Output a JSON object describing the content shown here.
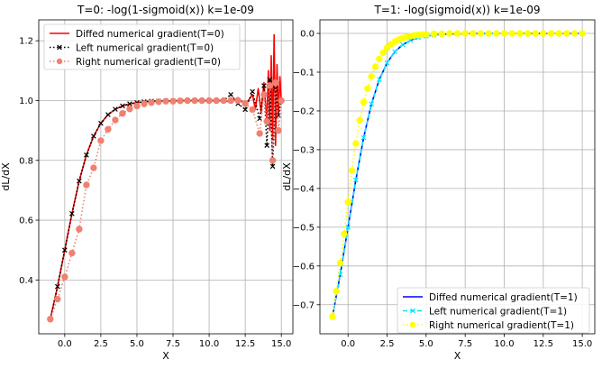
{
  "chart_data": [
    {
      "type": "line",
      "title": "T=0: -log(1-sigmoid(x)) k=1e-09",
      "xlabel": "X",
      "ylabel": "dL/dX",
      "xlim": [
        -1.8,
        15.8
      ],
      "ylim": [
        0.22,
        1.27
      ],
      "xticks": [
        0.0,
        2.5,
        5.0,
        7.5,
        10.0,
        12.5,
        15.0
      ],
      "xtick_labels": [
        "0.0",
        "2.5",
        "5.0",
        "7.5",
        "10.0",
        "12.5",
        "15.0"
      ],
      "yticks": [
        0.4,
        0.6,
        0.8,
        1.0,
        1.2
      ],
      "ytick_labels": [
        "0.4",
        "0.6",
        "0.8",
        "1.0",
        "1.2"
      ],
      "grid": true,
      "legend_position": "top-left",
      "series": [
        {
          "name": "Diffed numerical gradient(T=0)",
          "color": "#ff0000",
          "style": "solid",
          "marker": "none",
          "x": [
            -1.0,
            -0.5,
            0.0,
            0.5,
            1.0,
            1.5,
            2.0,
            2.5,
            3.0,
            3.5,
            4.0,
            4.5,
            5.0,
            5.5,
            6.0,
            6.5,
            7.0,
            7.5,
            8.0,
            8.5,
            9.0,
            9.5,
            10.0,
            10.5,
            11.0,
            11.5,
            12.0,
            12.5,
            13.0,
            13.2,
            13.4,
            13.6,
            13.8,
            14.0,
            14.1,
            14.2,
            14.3,
            14.4,
            14.5,
            14.6,
            14.7,
            14.8,
            14.9,
            15.0
          ],
          "y": [
            0.269,
            0.378,
            0.5,
            0.622,
            0.731,
            0.818,
            0.881,
            0.924,
            0.953,
            0.971,
            0.982,
            0.989,
            0.993,
            0.996,
            0.998,
            0.998,
            0.999,
            0.999,
            1.0,
            1.0,
            1.0,
            1.0,
            1.0,
            1.0,
            1.0,
            0.995,
            1.01,
            0.985,
            1.02,
            0.97,
            1.04,
            0.96,
            1.06,
            0.93,
            1.1,
            0.9,
            1.15,
            0.87,
            1.22,
            0.85,
            1.12,
            0.95,
            1.08,
            1.0
          ]
        },
        {
          "name": "Left numerical gradient(T=0)",
          "color": "#000000",
          "style": "dotted",
          "marker": "x",
          "x": [
            -1.0,
            -0.5,
            0.0,
            0.5,
            1.0,
            1.5,
            2.0,
            2.5,
            3.0,
            3.5,
            4.0,
            4.5,
            5.0,
            5.5,
            6.0,
            6.5,
            7.0,
            7.5,
            8.0,
            8.5,
            9.0,
            9.5,
            10.0,
            10.5,
            11.0,
            11.5,
            12.0,
            12.5,
            13.0,
            13.5,
            13.8,
            14.0,
            14.2,
            14.4,
            14.6,
            14.8,
            15.0
          ],
          "y": [
            0.269,
            0.378,
            0.5,
            0.622,
            0.731,
            0.818,
            0.881,
            0.924,
            0.953,
            0.971,
            0.982,
            0.989,
            0.993,
            0.996,
            0.998,
            0.998,
            0.999,
            0.999,
            1.0,
            1.0,
            1.0,
            1.0,
            1.0,
            1.0,
            1.0,
            1.02,
            0.99,
            0.97,
            1.03,
            0.94,
            1.05,
            0.85,
            1.07,
            0.78,
            1.04,
            0.95,
            1.0
          ]
        },
        {
          "name": "Right numerical gradient(T=0)",
          "color": "#f08070",
          "style": "dotted",
          "marker": "o",
          "x": [
            -1.0,
            -0.5,
            0.0,
            0.5,
            1.0,
            1.5,
            2.0,
            2.5,
            3.0,
            3.5,
            4.0,
            4.5,
            5.0,
            5.5,
            6.0,
            6.5,
            7.0,
            7.5,
            8.0,
            8.5,
            9.0,
            9.5,
            10.0,
            10.5,
            11.0,
            11.5,
            12.0,
            12.5,
            13.0,
            13.5,
            13.8,
            14.0,
            14.2,
            14.4,
            14.6,
            14.8,
            15.0
          ],
          "y": [
            0.269,
            0.336,
            0.41,
            0.49,
            0.57,
            0.718,
            0.775,
            0.866,
            0.904,
            0.935,
            0.957,
            0.972,
            0.982,
            0.989,
            0.993,
            0.996,
            0.998,
            0.998,
            0.999,
            1.0,
            1.0,
            1.0,
            1.0,
            1.0,
            1.0,
            1.0,
            1.0,
            0.99,
            0.97,
            0.89,
            1.02,
            0.93,
            1.05,
            0.8,
            1.06,
            0.9,
            1.0
          ]
        }
      ]
    },
    {
      "type": "line",
      "title": "T=1: -log(sigmoid(x)) k=1e-09",
      "xlabel": "X",
      "ylabel": "dL/dX",
      "xlim": [
        -1.8,
        15.8
      ],
      "ylim": [
        -0.775,
        0.035
      ],
      "xticks": [
        0.0,
        2.5,
        5.0,
        7.5,
        10.0,
        12.5,
        15.0
      ],
      "xtick_labels": [
        "0.0",
        "2.5",
        "5.0",
        "7.5",
        "10.0",
        "12.5",
        "15.0"
      ],
      "yticks": [
        0.0,
        -0.1,
        -0.2,
        -0.3,
        -0.4,
        -0.5,
        -0.6,
        -0.7
      ],
      "ytick_labels": [
        "0.0",
        "−0.1",
        "−0.2",
        "−0.3",
        "−0.4",
        "−0.5",
        "−0.6",
        "−0.7"
      ],
      "grid": true,
      "legend_position": "bottom-right",
      "series": [
        {
          "name": "Diffed numerical gradient(T=1)",
          "color": "#0000ff",
          "style": "solid",
          "marker": "none",
          "x": [
            -1.0,
            -0.5,
            0.0,
            0.5,
            1.0,
            1.5,
            2.0,
            2.5,
            3.0,
            3.5,
            4.0,
            4.5,
            5.0,
            5.5,
            6.0,
            7.0,
            8.0,
            9.0,
            10.0,
            11.0,
            12.0,
            13.0,
            14.0,
            15.0
          ],
          "y": [
            -0.731,
            -0.622,
            -0.5,
            -0.378,
            -0.269,
            -0.182,
            -0.119,
            -0.076,
            -0.047,
            -0.029,
            -0.018,
            -0.011,
            -0.007,
            -0.004,
            -0.002,
            -0.001,
            0.0,
            0.0,
            0.0,
            0.0,
            0.0,
            0.0,
            0.0,
            0.0
          ]
        },
        {
          "name": "Left numerical gradient(T=1)",
          "color": "#00e5ff",
          "style": "dashed",
          "marker": "x",
          "x": [
            -1.0,
            -0.5,
            0.0,
            0.5,
            1.0,
            1.5,
            2.0,
            2.5,
            3.0,
            3.5,
            4.0,
            4.5,
            5.0,
            5.5,
            6.0,
            7.0,
            8.0,
            9.0,
            10.0,
            11.0,
            12.0,
            13.0,
            14.0,
            15.0
          ],
          "y": [
            -0.731,
            -0.622,
            -0.5,
            -0.378,
            -0.269,
            -0.182,
            -0.119,
            -0.076,
            -0.047,
            -0.029,
            -0.018,
            -0.011,
            -0.007,
            -0.004,
            -0.002,
            -0.001,
            0.0,
            0.0,
            0.0,
            0.0,
            0.0,
            0.0,
            0.0,
            0.0
          ]
        },
        {
          "name": "Right numerical gradient(T=1)",
          "color": "#ffff00",
          "style": "dotted",
          "marker": "o",
          "x": [
            -1.0,
            -0.75,
            -0.5,
            -0.25,
            0.0,
            0.25,
            0.5,
            0.75,
            1.0,
            1.25,
            1.5,
            1.75,
            2.0,
            2.25,
            2.5,
            2.75,
            3.0,
            3.25,
            3.5,
            3.75,
            4.0,
            4.25,
            4.5,
            4.75,
            5.0,
            5.5,
            6.0,
            6.5,
            7.0,
            7.5,
            8.0,
            8.5,
            9.0,
            9.5,
            10.0,
            10.5,
            11.0,
            11.5,
            12.0,
            12.5,
            13.0,
            13.5,
            14.0,
            14.5,
            15.0
          ],
          "y": [
            -0.731,
            -0.665,
            -0.592,
            -0.517,
            -0.435,
            -0.354,
            -0.284,
            -0.224,
            -0.177,
            -0.142,
            -0.111,
            -0.086,
            -0.066,
            -0.05,
            -0.037,
            -0.028,
            -0.021,
            -0.016,
            -0.012,
            -0.009,
            -0.007,
            -0.005,
            -0.004,
            -0.003,
            -0.002,
            -0.001,
            -0.001,
            0.0,
            0.0,
            0.0,
            0.0,
            0.0,
            0.0,
            0.0,
            0.0,
            0.0,
            0.0,
            0.0,
            0.0,
            0.0,
            0.0,
            0.0,
            0.0,
            0.0,
            0.0
          ]
        }
      ]
    }
  ]
}
